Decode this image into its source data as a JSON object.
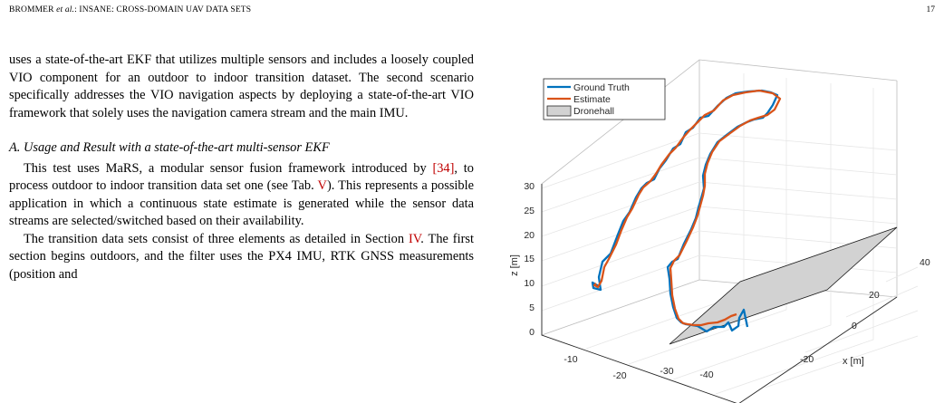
{
  "header": {
    "authors": "BROMMER",
    "et_al": "et al.",
    "title": ": INSANE: CROSS-DOMAIN UAV DATA SETS",
    "page_number": "17"
  },
  "body": {
    "para1": "uses a state-of-the-art EKF that utilizes multiple sensors and includes a loosely coupled VIO component for an outdoor to indoor transition dataset. The second scenario specifically addresses the VIO navigation aspects by deploying a state-of-the-art VIO framework that solely uses the navigation camera stream and the main IMU.",
    "section_title": "A. Usage and Result with a state-of-the-art multi-sensor EKF",
    "para2_a": "This test uses MaRS, a modular sensor fusion framework introduced by ",
    "para2_ref1": "[34]",
    "para2_b": ", to process outdoor to indoor transition data set one (see Tab. ",
    "para2_ref2": "V",
    "para2_c": "). This represents a possible application in which a continuous state estimate is generated while the sensor data streams are selected/switched based on their availability.",
    "para3_a": "The transition data sets consist of three elements as detailed in Section ",
    "para3_ref": "IV",
    "para3_b": ". The first section begins outdoors, and the filter uses the PX4 IMU, RTK GNSS measurements (position and"
  },
  "chart_data": {
    "type": "line",
    "projection": "3d",
    "legend_placement": "top-left",
    "grid": true,
    "zlabel": "z [m]",
    "xlabel": "x [m]",
    "ylabel": "",
    "z_ticks": [
      "0",
      "5",
      "10",
      "15",
      "20",
      "25",
      "30"
    ],
    "y_ticks": [
      "-10",
      "-20",
      "-30",
      "-40"
    ],
    "x_ticks": [
      "-20",
      "0",
      "20",
      "40"
    ],
    "xlim": [
      -30,
      50
    ],
    "ylim": [
      -45,
      0
    ],
    "zlim": [
      0,
      35
    ],
    "series": [
      {
        "name": "Ground Truth",
        "color": "#0072bd"
      },
      {
        "name": "Estimate",
        "color": "#d95319"
      },
      {
        "name": "Dronehall",
        "color": "#d9d9d9"
      }
    ]
  }
}
